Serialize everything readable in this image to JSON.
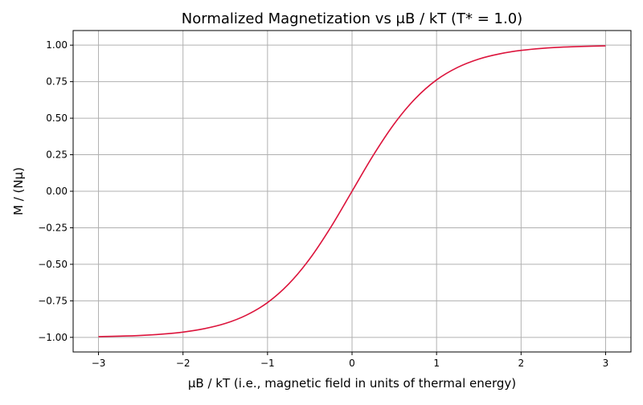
{
  "chart_data": {
    "type": "line",
    "title": "Normalized Magnetization vs μB / kT (T* = 1.0)",
    "xlabel": "μB / kT (i.e., magnetic field in units of thermal energy)",
    "ylabel": "M / (Nμ)",
    "xlim": [
      -3.3,
      3.3
    ],
    "ylim": [
      -1.1,
      1.1
    ],
    "grid": true,
    "x_ticks": [
      {
        "value": -3,
        "label": "−3"
      },
      {
        "value": -2,
        "label": "−2"
      },
      {
        "value": -1,
        "label": "−1"
      },
      {
        "value": 0,
        "label": "0"
      },
      {
        "value": 1,
        "label": "1"
      },
      {
        "value": 2,
        "label": "2"
      },
      {
        "value": 3,
        "label": "3"
      }
    ],
    "y_ticks": [
      {
        "value": -1.0,
        "label": "−1.00"
      },
      {
        "value": -0.75,
        "label": "−0.75"
      },
      {
        "value": -0.5,
        "label": "−0.50"
      },
      {
        "value": -0.25,
        "label": "−0.25"
      },
      {
        "value": 0.0,
        "label": "0.00"
      },
      {
        "value": 0.25,
        "label": "0.25"
      },
      {
        "value": 0.5,
        "label": "0.50"
      },
      {
        "value": 0.75,
        "label": "0.75"
      },
      {
        "value": 1.0,
        "label": "1.00"
      }
    ],
    "series": [
      {
        "color": "#dc143c",
        "x": [
          -3.0,
          -2.75,
          -2.5,
          -2.25,
          -2.0,
          -1.75,
          -1.5,
          -1.25,
          -1.0,
          -0.75,
          -0.5,
          -0.25,
          0.0,
          0.25,
          0.5,
          0.75,
          1.0,
          1.25,
          1.5,
          1.75,
          2.0,
          2.25,
          2.5,
          2.75,
          3.0
        ],
        "y": [
          -0.995,
          -0.992,
          -0.987,
          -0.978,
          -0.964,
          -0.941,
          -0.905,
          -0.848,
          -0.762,
          -0.635,
          -0.462,
          -0.245,
          0.0,
          0.245,
          0.462,
          0.635,
          0.762,
          0.848,
          0.905,
          0.941,
          0.964,
          0.978,
          0.987,
          0.992,
          0.995
        ]
      }
    ]
  }
}
